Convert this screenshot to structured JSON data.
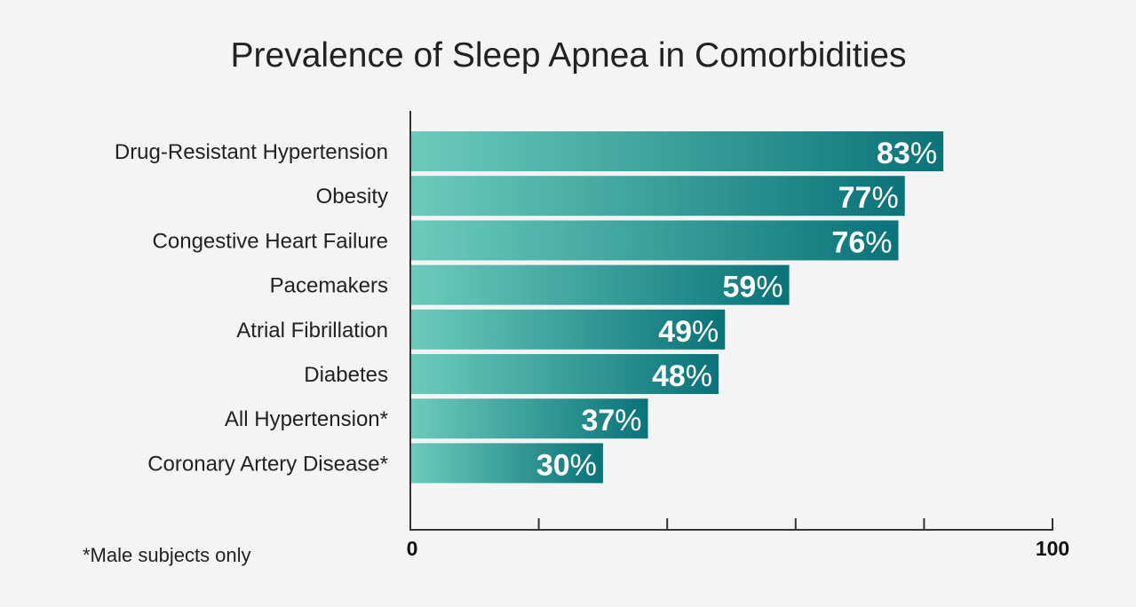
{
  "chart_data": {
    "type": "bar",
    "orientation": "horizontal",
    "title": "Prevalence of Sleep Apnea in Comorbidities",
    "categories": [
      "Drug-Resistant Hypertension",
      "Obesity",
      "Congestive Heart Failure",
      "Pacemakers",
      "Atrial Fibrillation",
      "Diabetes",
      "All Hypertension*",
      "Coronary Artery Disease*"
    ],
    "values": [
      83,
      77,
      76,
      59,
      49,
      48,
      37,
      30
    ],
    "data_labels": [
      "83%",
      "77%",
      "76%",
      "59%",
      "49%",
      "48%",
      "37%",
      "30%"
    ],
    "xlim": [
      0,
      100
    ],
    "x_tick_labels": [
      "0",
      "100"
    ],
    "x_ticks": [
      0,
      20,
      40,
      60,
      80,
      100
    ],
    "xlabel": "",
    "ylabel": "",
    "grid": false,
    "footnote": "*Male subjects only",
    "colors": {
      "bar_start": "#6ccbbb",
      "bar_end": "#0a7379",
      "axis": "#333333",
      "background": "#f4f4f4"
    }
  }
}
